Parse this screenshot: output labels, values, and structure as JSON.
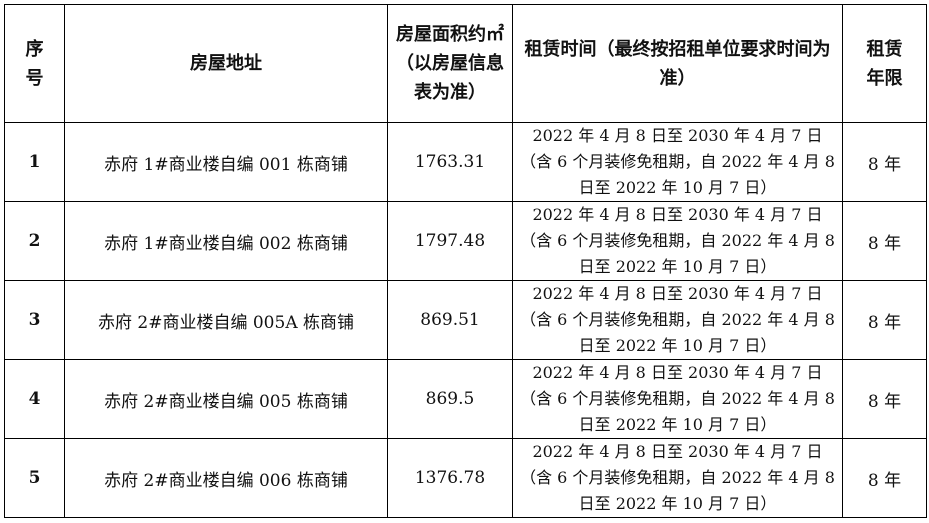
{
  "headers": {
    "no": "序号",
    "address": "房屋地址",
    "area": "房屋面积约㎡（以房屋信息表为准）",
    "lease_time": "租赁时间（最终按招租单位要求时间为准）",
    "term": "租赁年限"
  },
  "rows": [
    {
      "no": "1",
      "address": "赤府 1#商业楼自编 001 栋商铺",
      "area": "1763.31",
      "lease_time": "2022 年 4 月 8 日至 2030 年 4 月 7 日（含 6 个月装修免租期，自 2022 年 4 月 8 日至 2022 年 10 月 7 日）",
      "term": "8 年"
    },
    {
      "no": "2",
      "address": "赤府 1#商业楼自编 002 栋商铺",
      "area": "1797.48",
      "lease_time": "2022 年 4 月 8 日至 2030 年 4 月 7 日（含 6 个月装修免租期，自 2022 年 4 月 8 日至 2022 年 10 月 7 日）",
      "term": "8 年"
    },
    {
      "no": "3",
      "address": "赤府 2#商业楼自编 005A 栋商铺",
      "area": "869.51",
      "lease_time": "2022 年 4 月 8 日至 2030 年 4 月 7 日（含 6 个月装修免租期，自 2022 年 4 月 8 日至 2022 年 10 月 7 日）",
      "term": "8 年"
    },
    {
      "no": "4",
      "address": "赤府 2#商业楼自编 005 栋商铺",
      "area": "869.5",
      "lease_time": "2022 年 4 月 8 日至 2030 年 4 月 7 日（含 6 个月装修免租期，自 2022 年 4 月 8 日至 2022 年 10 月 7 日）",
      "term": "8 年"
    },
    {
      "no": "5",
      "address": "赤府 2#商业楼自编 006 栋商铺",
      "area": "1376.78",
      "lease_time": "2022 年 4 月 8 日至 2030 年 4 月 7 日（含 6 个月装修免租期，自 2022 年 4 月 8 日至 2022 年 10 月 7 日）",
      "term": "8 年"
    }
  ]
}
